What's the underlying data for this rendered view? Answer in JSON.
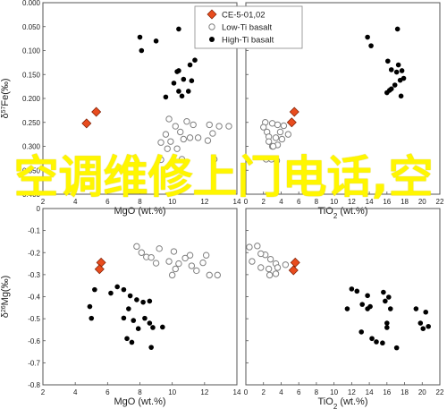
{
  "overlay_text": "空调维修上门电话,空",
  "legend": [
    {
      "label": "CE-5-01,02",
      "marker": "diamond",
      "color": "#e84c1e"
    },
    {
      "label": "Low-Ti basalt",
      "marker": "circle-open",
      "color": "#808080"
    },
    {
      "label": "High-Ti basalt",
      "marker": "circle",
      "color": "#000000"
    }
  ],
  "chart_data": [
    {
      "type": "scatter",
      "panel": "top-left",
      "xlabel": "MgO (wt.%)",
      "ylabel": "δ57Fe(‰)",
      "ylabel_parts": {
        "pre": "δ",
        "sup": "57",
        "post": "Fe(‰)"
      },
      "xlim": [
        2,
        14
      ],
      "ylim": [
        0.0,
        0.4
      ],
      "x_ticks": [
        "2",
        "4",
        "6",
        "8",
        "10",
        "12",
        "14"
      ],
      "y_ticks": [
        "0.000",
        "0.050",
        "0.100",
        "0.150",
        "0.200",
        "0.250",
        "0.300",
        "0.350",
        "0.400"
      ],
      "series": [
        {
          "name": "CE-5-01,02",
          "marker": "diamond",
          "points": [
            [
              4.7,
              0.148
            ],
            [
              5.3,
              0.172
            ]
          ]
        },
        {
          "name": "Low-Ti basalt",
          "marker": "circle-open",
          "points": [
            [
              9.8,
              0.157
            ],
            [
              10.2,
              0.142
            ],
            [
              9.6,
              0.125
            ],
            [
              10.9,
              0.152
            ],
            [
              11.3,
              0.145
            ],
            [
              10.5,
              0.13
            ],
            [
              9.9,
              0.11
            ],
            [
              10.7,
              0.115
            ],
            [
              9.3,
              0.108
            ],
            [
              11.1,
              0.118
            ],
            [
              10.3,
              0.095
            ],
            [
              9.7,
              0.095
            ],
            [
              11.6,
              0.118
            ],
            [
              12.3,
              0.145
            ],
            [
              12.5,
              0.127
            ],
            [
              12.9,
              0.142
            ],
            [
              13.5,
              0.142
            ],
            [
              12.2,
              0.112
            ],
            [
              12.6,
              0.073
            ],
            [
              9.3,
              0.072
            ],
            [
              10.6,
              0.073
            ]
          ]
        },
        {
          "name": "High-Ti basalt",
          "marker": "circle",
          "points": [
            [
              8.0,
              0.328
            ],
            [
              9.0,
              0.32
            ],
            [
              10.4,
              0.345
            ],
            [
              11.4,
              0.28
            ],
            [
              11.1,
              0.27
            ],
            [
              10.4,
              0.258
            ],
            [
              10.1,
              0.232
            ],
            [
              10.7,
              0.24
            ],
            [
              11.2,
              0.237
            ],
            [
              10.4,
              0.215
            ],
            [
              10.6,
              0.205
            ],
            [
              9.6,
              0.203
            ],
            [
              11.0,
              0.215
            ],
            [
              8.1,
              0.3
            ],
            [
              10.3,
              0.256
            ]
          ]
        }
      ]
    },
    {
      "type": "scatter",
      "panel": "top-right",
      "xlabel": "TiO2 (wt.%)",
      "xlabel_parts": {
        "pre": "TiO",
        "sub": "2",
        "post": " (wt.%)"
      },
      "xlim": [
        0,
        22
      ],
      "ylim": [
        0.0,
        0.4
      ],
      "x_ticks": [
        "0",
        "2",
        "4",
        "6",
        "8",
        "10",
        "12",
        "14",
        "16",
        "18",
        "20",
        "22"
      ],
      "y_ticks": [],
      "series": [
        {
          "name": "CE-5-01,02",
          "marker": "diamond",
          "points": [
            [
              5.5,
              0.172
            ],
            [
              5.2,
              0.15
            ]
          ]
        },
        {
          "name": "Low-Ti basalt",
          "marker": "circle-open",
          "points": [
            [
              2.2,
              0.15
            ],
            [
              2.4,
              0.13
            ],
            [
              3.0,
              0.148
            ],
            [
              2.6,
              0.12
            ],
            [
              3.6,
              0.145
            ],
            [
              3.9,
              0.13
            ],
            [
              2.0,
              0.14
            ],
            [
              4.1,
              0.115
            ],
            [
              2.6,
              0.11
            ],
            [
              3.0,
              0.1
            ],
            [
              4.3,
              0.143
            ],
            [
              3.4,
              0.118
            ],
            [
              3.6,
              0.103
            ],
            [
              3.1,
              0.1
            ],
            [
              4.8,
              0.125
            ],
            [
              2.3,
              0.073
            ],
            [
              3.5,
              0.07
            ],
            [
              2.9,
              0.073
            ]
          ]
        },
        {
          "name": "High-Ti basalt",
          "marker": "circle",
          "points": [
            [
              13.8,
              0.328
            ],
            [
              14.2,
              0.31
            ],
            [
              17.2,
              0.345
            ],
            [
              16.1,
              0.278
            ],
            [
              16.5,
              0.26
            ],
            [
              17.1,
              0.255
            ],
            [
              17.5,
              0.238
            ],
            [
              17.9,
              0.242
            ],
            [
              16.9,
              0.228
            ],
            [
              16.5,
              0.22
            ],
            [
              16.0,
              0.212
            ],
            [
              16.3,
              0.217
            ],
            [
              17.6,
              0.205
            ],
            [
              17.3,
              0.27
            ],
            [
              17.7,
              0.258
            ]
          ]
        }
      ]
    },
    {
      "type": "scatter",
      "panel": "bottom-left",
      "xlabel": "MgO (wt.%)",
      "ylabel": "δ26Mg(‰)",
      "ylabel_parts": {
        "pre": "δ",
        "sup": "26",
        "post": "Mg(‰)"
      },
      "xlim": [
        2,
        14
      ],
      "ylim": [
        -0.8,
        0.0
      ],
      "x_ticks": [
        "2",
        "4",
        "6",
        "8",
        "10",
        "12",
        "14"
      ],
      "y_ticks": [
        "0",
        "-0.1",
        "-0.2",
        "-0.3",
        "-0.4",
        "-0.5",
        "-0.6",
        "-0.7",
        "-0.8"
      ],
      "series": [
        {
          "name": "CE-5-01,02",
          "marker": "diamond",
          "points": [
            [
              5.6,
              -0.245
            ],
            [
              5.5,
              -0.275
            ]
          ]
        },
        {
          "name": "Low-Ti basalt",
          "marker": "circle-open",
          "points": [
            [
              7.8,
              -0.172
            ],
            [
              8.1,
              -0.2
            ],
            [
              8.4,
              -0.22
            ],
            [
              8.7,
              -0.222
            ],
            [
              9.2,
              -0.182
            ],
            [
              10.1,
              -0.195
            ],
            [
              11.1,
              -0.212
            ],
            [
              12.1,
              -0.212
            ],
            [
              9.0,
              -0.248
            ],
            [
              9.8,
              -0.24
            ],
            [
              10.4,
              -0.25
            ],
            [
              10.8,
              -0.225
            ],
            [
              11.2,
              -0.26
            ],
            [
              11.9,
              -0.246
            ],
            [
              12.3,
              -0.302
            ],
            [
              12.8,
              -0.302
            ],
            [
              11.5,
              -0.282
            ],
            [
              10.2,
              -0.274
            ],
            [
              10.0,
              -0.302
            ]
          ]
        },
        {
          "name": "High-Ti basalt",
          "marker": "circle",
          "points": [
            [
              5.2,
              -0.368
            ],
            [
              4.9,
              -0.445
            ],
            [
              5.0,
              -0.498
            ],
            [
              6.2,
              -0.384
            ],
            [
              6.6,
              -0.355
            ],
            [
              7.0,
              -0.368
            ],
            [
              7.4,
              -0.396
            ],
            [
              7.8,
              -0.414
            ],
            [
              7.3,
              -0.455
            ],
            [
              8.2,
              -0.425
            ],
            [
              8.6,
              -0.42
            ],
            [
              8.3,
              -0.498
            ],
            [
              8.6,
              -0.52
            ],
            [
              7.6,
              -0.508
            ],
            [
              8.8,
              -0.54
            ],
            [
              9.4,
              -0.538
            ],
            [
              7.9,
              -0.545
            ],
            [
              7.2,
              -0.59
            ],
            [
              7.5,
              -0.607
            ],
            [
              8.7,
              -0.63
            ],
            [
              7.0,
              -0.497
            ]
          ]
        }
      ]
    },
    {
      "type": "scatter",
      "panel": "bottom-right",
      "xlabel": "TiO2 (wt.%)",
      "xlabel_parts": {
        "pre": "TiO",
        "sub": "2",
        "post": " (wt.%)"
      },
      "xlim": [
        0,
        22
      ],
      "ylim": [
        -0.8,
        0.0
      ],
      "x_ticks": [
        "0",
        "2",
        "4",
        "6",
        "8",
        "10",
        "12",
        "14",
        "16",
        "18",
        "20",
        "22"
      ],
      "y_ticks": [],
      "series": [
        {
          "name": "CE-5-01,02",
          "marker": "diamond",
          "points": [
            [
              5.6,
              -0.245
            ],
            [
              5.4,
              -0.28
            ]
          ]
        },
        {
          "name": "Low-Ti basalt",
          "marker": "circle-open",
          "points": [
            [
              0.4,
              -0.175
            ],
            [
              1.3,
              -0.17
            ],
            [
              2.2,
              -0.21
            ],
            [
              2.8,
              -0.23
            ],
            [
              3.4,
              -0.25
            ],
            [
              1.7,
              -0.205
            ],
            [
              0.7,
              -0.24
            ],
            [
              4.5,
              -0.255
            ],
            [
              2.7,
              -0.302
            ],
            [
              3.4,
              -0.296
            ],
            [
              3.6,
              -0.268
            ],
            [
              2.6,
              -0.274
            ],
            [
              1.7,
              -0.268
            ]
          ]
        },
        {
          "name": "High-Ti basalt",
          "marker": "circle",
          "points": [
            [
              12.0,
              -0.365
            ],
            [
              12.6,
              -0.375
            ],
            [
              13.8,
              -0.395
            ],
            [
              13.2,
              -0.435
            ],
            [
              11.5,
              -0.455
            ],
            [
              13.8,
              -0.455
            ],
            [
              14.1,
              -0.445
            ],
            [
              15.6,
              -0.38
            ],
            [
              16.2,
              -0.402
            ],
            [
              15.8,
              -0.42
            ],
            [
              16.4,
              -0.455
            ],
            [
              16.0,
              -0.52
            ],
            [
              14.3,
              -0.59
            ],
            [
              14.8,
              -0.605
            ],
            [
              13.1,
              -0.56
            ],
            [
              15.5,
              -0.61
            ],
            [
              16.0,
              -0.54
            ],
            [
              17.1,
              -0.632
            ],
            [
              19.3,
              -0.455
            ],
            [
              20.4,
              -0.47
            ],
            [
              19.8,
              -0.52
            ],
            [
              20.7,
              -0.535
            ],
            [
              20.1,
              -0.545
            ]
          ]
        }
      ]
    }
  ]
}
